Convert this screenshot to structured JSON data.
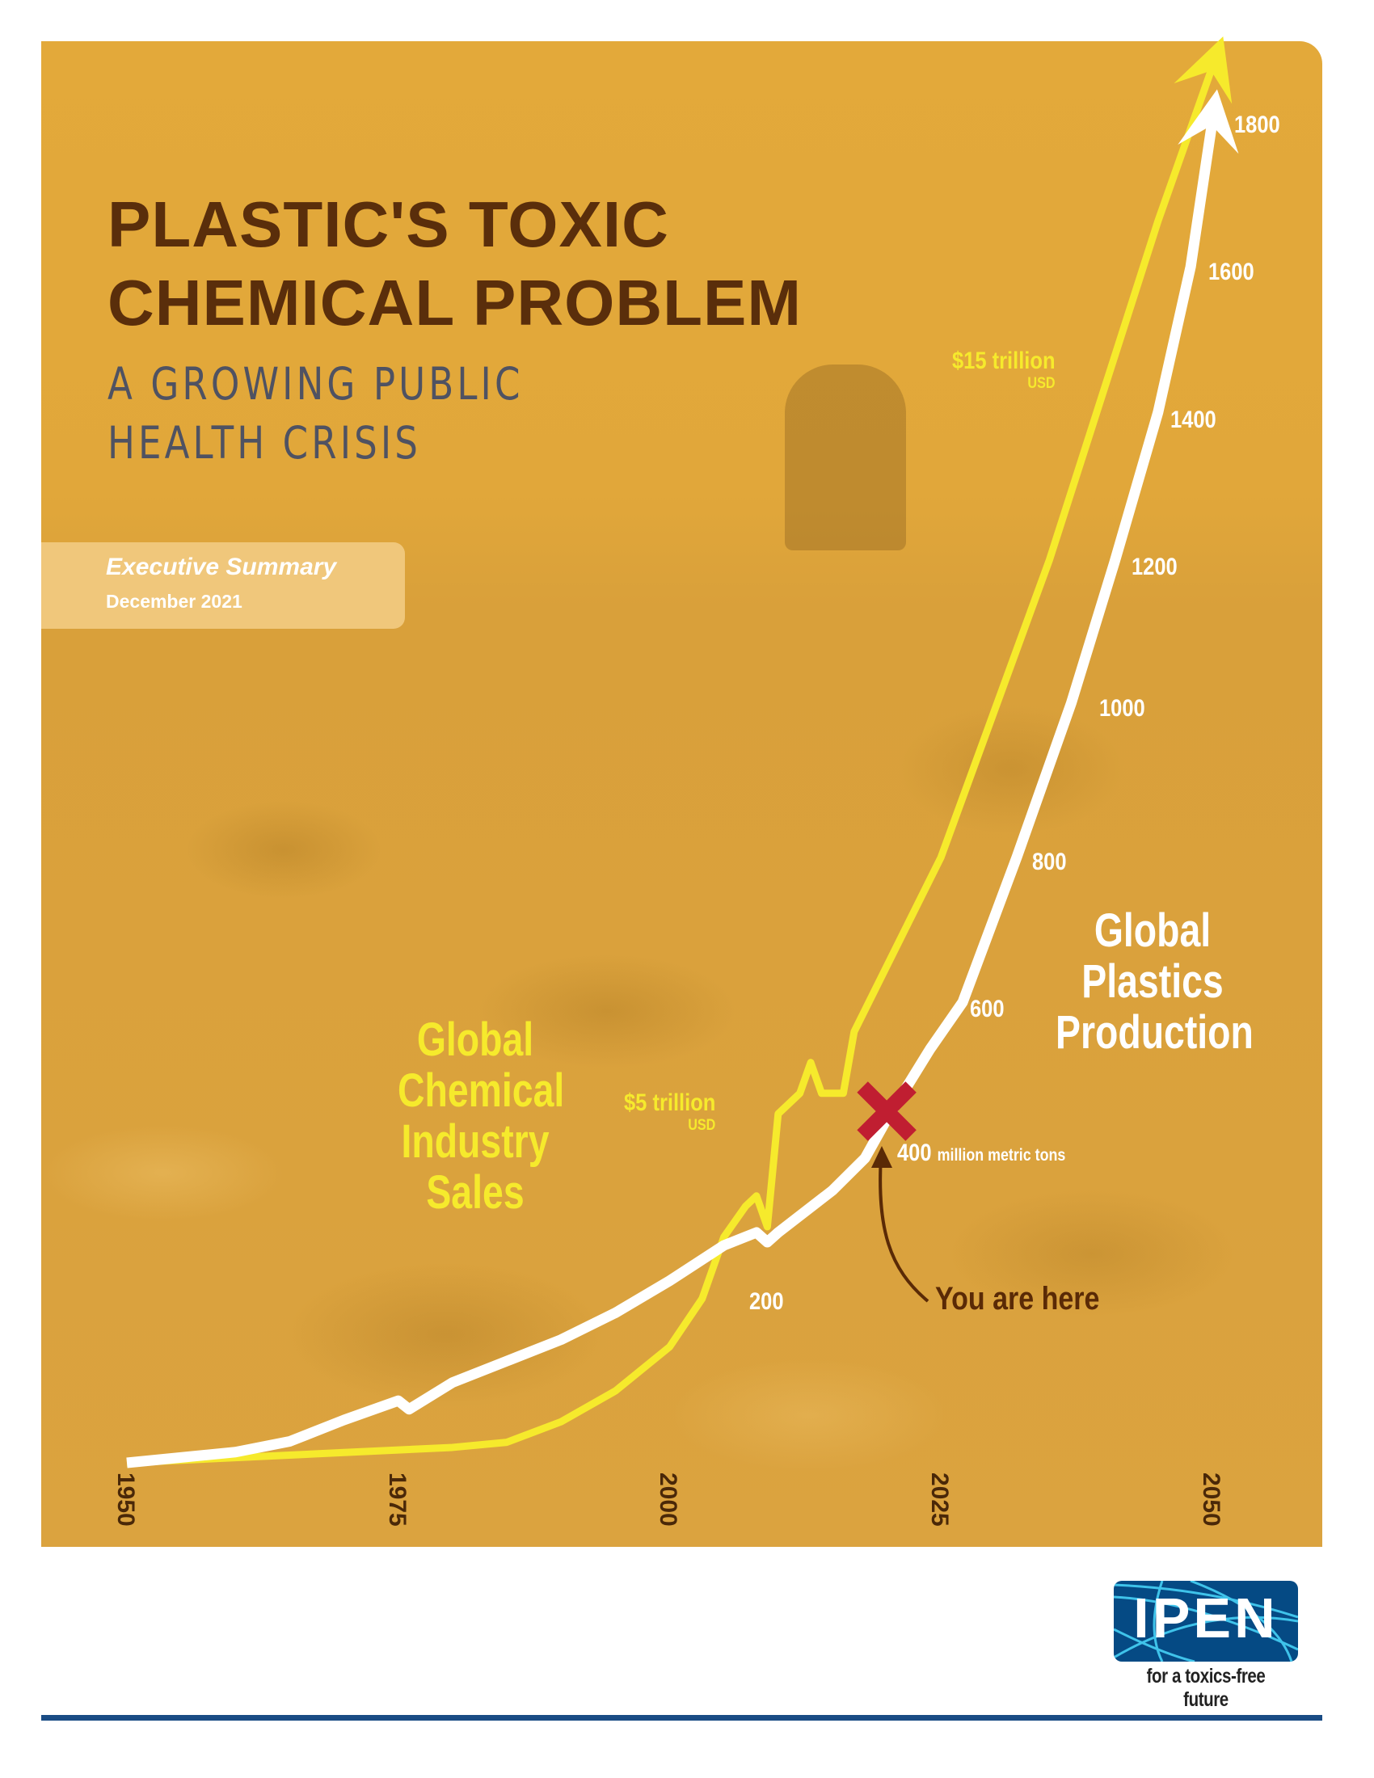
{
  "title": {
    "line1": "PLASTIC'S TOXIC",
    "line2": "CHEMICAL PROBLEM"
  },
  "subtitle": {
    "line1": "A GROWING PUBLIC",
    "line2": "HEALTH CRISIS"
  },
  "badge": {
    "label": "Executive Summary",
    "date": "December 2021"
  },
  "chart_data": {
    "type": "line",
    "x_ticks": [
      "1950",
      "1975",
      "2000",
      "2025",
      "2050"
    ],
    "xlim": [
      1950,
      2050
    ],
    "series": [
      {
        "name": "Global Chemical Industry Sales",
        "unit": "trillion USD",
        "color": "#f6ea2c",
        "x": [
          1950,
          1960,
          1970,
          1980,
          1985,
          1990,
          1995,
          2000,
          2003,
          2005,
          2007,
          2008,
          2009,
          2010,
          2012,
          2013,
          2014,
          2016,
          2017,
          2025,
          2035,
          2045,
          2050
        ],
        "y": [
          0,
          0.05,
          0.1,
          0.15,
          0.2,
          0.4,
          0.7,
          1.13,
          1.6,
          2.2,
          2.5,
          2.6,
          2.3,
          3.4,
          3.6,
          3.9,
          3.6,
          3.6,
          4.2,
          5.9,
          8.8,
          12.1,
          13.6
        ]
      },
      {
        "name": "Global Plastics Production",
        "unit": "million metric tons",
        "color": "#ffffff",
        "x": [
          1950,
          1960,
          1965,
          1970,
          1975,
          1976,
          1980,
          1985,
          1990,
          1995,
          2000,
          2005,
          2008,
          2009,
          2010,
          2015,
          2018,
          2020,
          2024,
          2027,
          2032,
          2037,
          2041,
          2045,
          2048,
          2050
        ],
        "y": [
          0,
          10,
          20,
          40,
          58,
          50,
          75,
          95,
          115,
          140,
          170,
          205,
          225,
          210,
          225,
          290,
          340,
          400,
          520,
          600,
          800,
          1000,
          1200,
          1400,
          1600,
          1800
        ]
      }
    ],
    "plastics_scale_labels": [
      "200",
      "600",
      "800",
      "1000",
      "1200",
      "1400",
      "1600",
      "1800"
    ],
    "sales_labels": [
      {
        "value": "$5 trillion",
        "unit": "USD"
      },
      {
        "value": "$15 trillion",
        "unit": "USD"
      }
    ],
    "series_titles": {
      "sales": [
        "Global",
        "Chemical",
        "Industry",
        "Sales"
      ],
      "plastics": [
        "Global",
        "Plastics",
        "Production"
      ]
    },
    "marker": {
      "value": "400",
      "unit": "million metric tons",
      "callout": "You are here",
      "color": "#c01e31"
    }
  },
  "logo": {
    "name": "IPEN",
    "tagline": "for a toxics-free future"
  }
}
